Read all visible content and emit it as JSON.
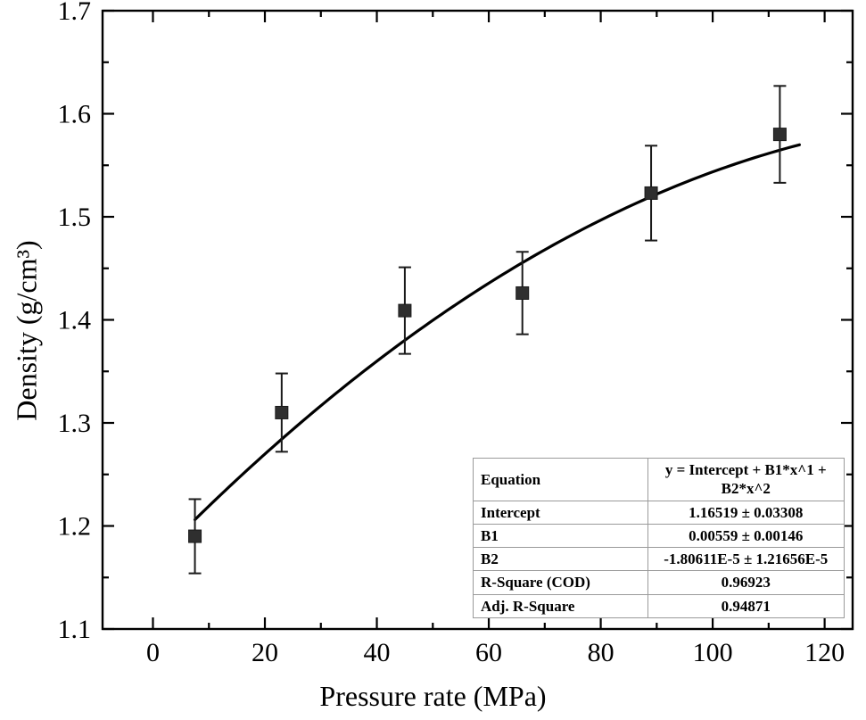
{
  "figure": {
    "background": "#ffffff"
  },
  "chart_data": {
    "type": "scatter",
    "title": "",
    "xlabel": "Pressure rate (MPa)",
    "ylabel": "Density (g/cm³)",
    "xlim": [
      -9,
      125
    ],
    "ylim": [
      1.1,
      1.7
    ],
    "x_major_ticks": [
      0,
      20,
      40,
      60,
      80,
      100,
      120
    ],
    "x_minor_ticks": [
      10,
      30,
      50,
      70,
      90,
      110
    ],
    "y_major_ticks": [
      1.1,
      1.2,
      1.3,
      1.4,
      1.5,
      1.6,
      1.7
    ],
    "y_minor_ticks": [
      1.15,
      1.25,
      1.35,
      1.45,
      1.55,
      1.65
    ],
    "grid": false,
    "legend": "none",
    "points": {
      "x": [
        7.5,
        23,
        45,
        66,
        89,
        112
      ],
      "y": [
        1.19,
        1.31,
        1.409,
        1.426,
        1.523,
        1.58
      ],
      "yerr": [
        0.036,
        0.038,
        0.042,
        0.04,
        0.046,
        0.047
      ]
    },
    "fit": {
      "type": "poly2",
      "intercept": 1.16519,
      "b1": 0.00559,
      "b2": -1.80611e-05,
      "x_range": [
        7.5,
        116
      ]
    },
    "marker_color": "#2f2f2f",
    "errorbar_color": "#1a1a1a",
    "line_color": "#000000",
    "frame_color": "#000000"
  },
  "stats_table": {
    "rows": [
      {
        "label": "Equation",
        "value": "y = Intercept + B1*x^1 + B2*x^2"
      },
      {
        "label": "Intercept",
        "value": "1.16519 ± 0.03308"
      },
      {
        "label": "B1",
        "value": "0.00559 ± 0.00146"
      },
      {
        "label": "B2",
        "value": "-1.80611E-5 ± 1.21656E-5"
      },
      {
        "label": "R-Square (COD)",
        "value": "0.96923"
      },
      {
        "label": "Adj. R-Square",
        "value": "0.94871"
      }
    ]
  }
}
